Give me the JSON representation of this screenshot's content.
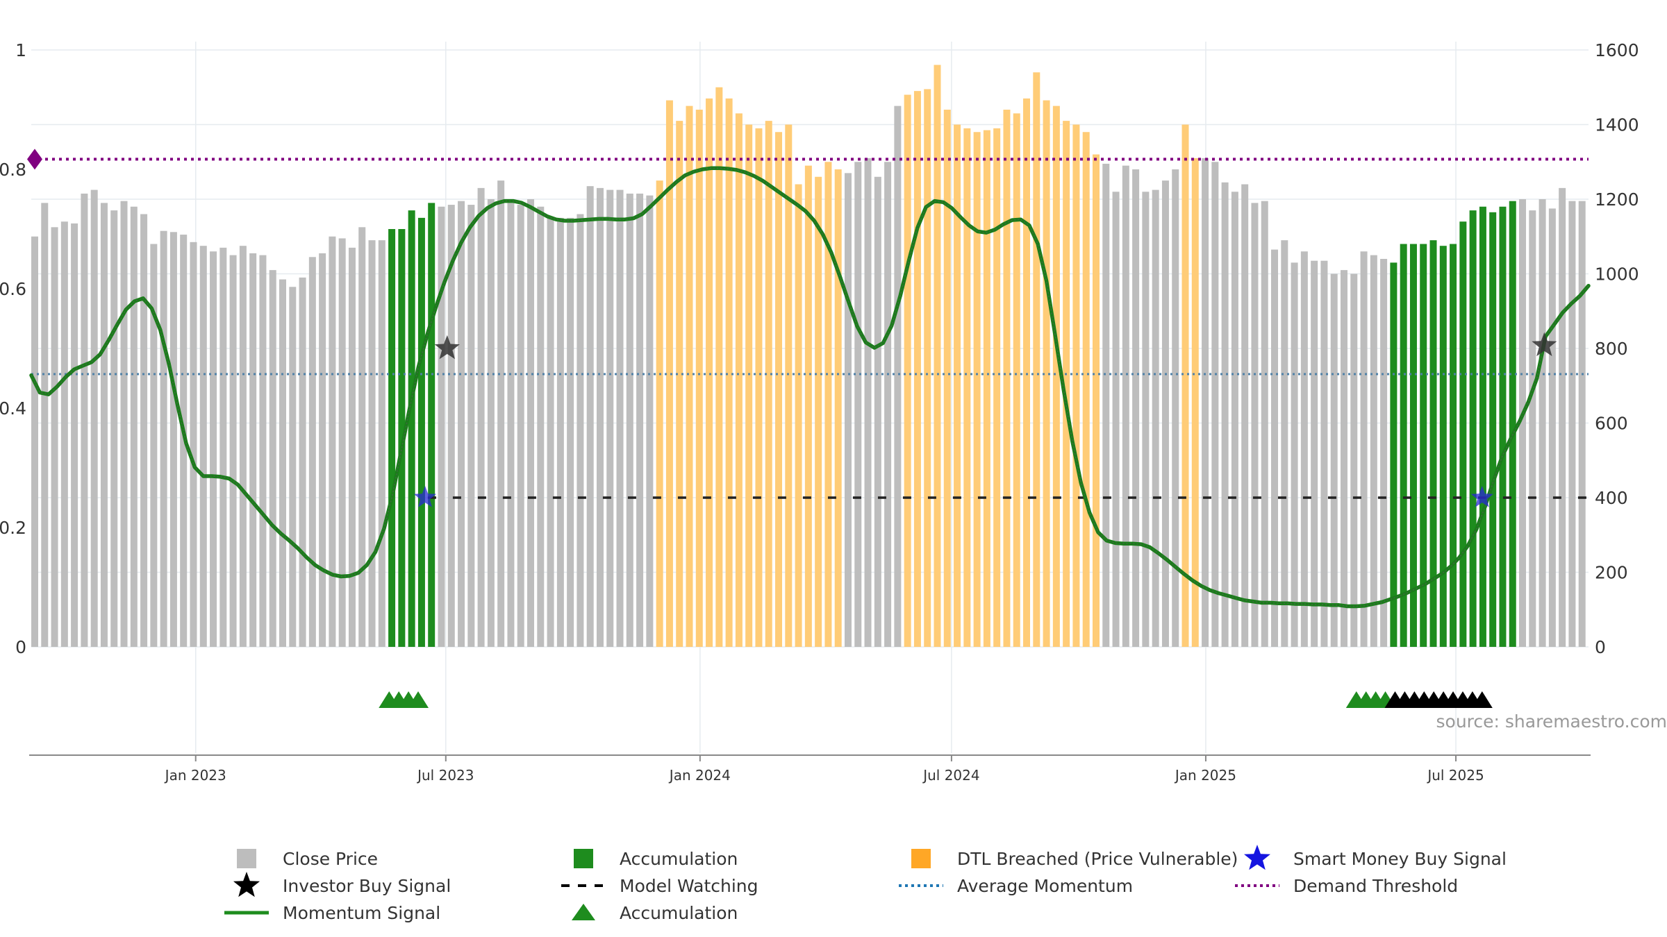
{
  "chart_data": {
    "type": "bar+line",
    "source_text": "source: sharemaestro.com",
    "colors": {
      "close": "#bdbdbd",
      "accumulation": "#1e8c1e",
      "dtl": "#ffcc77",
      "momentum": "#2a8c2a",
      "avg_momentum": "#4f81a8",
      "demand": "#800080",
      "watching": "#222222",
      "smart_money": "#2a2ad4",
      "investor": "#333333"
    },
    "left_axis": {
      "ticks": [
        0,
        0.2,
        0.4,
        0.6,
        0.8,
        1
      ],
      "labels": [
        "0",
        "0.2",
        "0.4",
        "0.6",
        "0.8",
        "1"
      ],
      "ylim": [
        0,
        1
      ]
    },
    "right_axis": {
      "ticks": [
        0,
        200,
        400,
        600,
        800,
        1000,
        1200,
        1400,
        1600
      ],
      "labels": [
        "0",
        "200",
        "400",
        "600",
        "800",
        "1000",
        "1200",
        "1400",
        "1600"
      ],
      "ylim": [
        0,
        1600
      ]
    },
    "x_axis": {
      "start_date": "2022-09-04",
      "end_date": "2025-10-05",
      "ticks": [
        {
          "date": "2023-01-01",
          "label": "Jan 2023"
        },
        {
          "date": "2023-07-01",
          "label": "Jul 2023"
        },
        {
          "date": "2024-01-01",
          "label": "Jan 2024"
        },
        {
          "date": "2024-07-01",
          "label": "Jul 2024"
        },
        {
          "date": "2025-01-01",
          "label": "Jan 2025"
        },
        {
          "date": "2025-07-01",
          "label": "Jul 2025"
        }
      ]
    },
    "close_price_weekly": [
      1100,
      1190,
      1125,
      1140,
      1135,
      1215,
      1225,
      1190,
      1170,
      1195,
      1180,
      1160,
      1080,
      1115,
      1112,
      1105,
      1085,
      1075,
      1060,
      1070,
      1050,
      1075,
      1055,
      1050,
      1010,
      985,
      965,
      990,
      1045,
      1055,
      1100,
      1095,
      1070,
      1125,
      1090,
      1090,
      1120,
      1120,
      1170,
      1150,
      1190,
      1180,
      1185,
      1195,
      1185,
      1230,
      1200,
      1250,
      1190,
      1185,
      1200,
      1180,
      1150,
      1150,
      1150,
      1160,
      1235,
      1230,
      1225,
      1225,
      1215,
      1215,
      1210,
      1250,
      1465,
      1410,
      1450,
      1440,
      1470,
      1500,
      1470,
      1430,
      1400,
      1390,
      1410,
      1380,
      1400,
      1240,
      1290,
      1260,
      1300,
      1280,
      1270,
      1300,
      1310,
      1260,
      1300,
      1450,
      1480,
      1490,
      1495,
      1560,
      1440,
      1400,
      1390,
      1380,
      1385,
      1390,
      1440,
      1430,
      1470,
      1540,
      1465,
      1450,
      1410,
      1400,
      1380,
      1320,
      1295,
      1220,
      1290,
      1280,
      1220,
      1225,
      1250,
      1280,
      1400,
      1310,
      1310,
      1300,
      1245,
      1220,
      1240,
      1190,
      1195,
      1065,
      1090,
      1030,
      1060,
      1035,
      1035,
      1000,
      1010,
      1000,
      1060,
      1050,
      1040,
      1030,
      1080,
      1080,
      1080,
      1090,
      1075,
      1080,
      1140,
      1170,
      1180,
      1165,
      1180,
      1195,
      1200,
      1170,
      1200,
      1175,
      1230,
      1195,
      1195
    ],
    "momentum": [
      0.455,
      0.426,
      0.423,
      0.436,
      0.452,
      0.465,
      0.471,
      0.477,
      0.49,
      0.514,
      0.54,
      0.565,
      0.579,
      0.584,
      0.567,
      0.531,
      0.474,
      0.405,
      0.341,
      0.301,
      0.286,
      0.286,
      0.285,
      0.282,
      0.272,
      0.255,
      0.238,
      0.221,
      0.204,
      0.19,
      0.178,
      0.165,
      0.15,
      0.137,
      0.128,
      0.121,
      0.118,
      0.119,
      0.124,
      0.137,
      0.159,
      0.198,
      0.255,
      0.328,
      0.401,
      0.469,
      0.522,
      0.568,
      0.61,
      0.647,
      0.678,
      0.703,
      0.722,
      0.735,
      0.743,
      0.747,
      0.747,
      0.744,
      0.737,
      0.729,
      0.721,
      0.716,
      0.714,
      0.714,
      0.715,
      0.716,
      0.717,
      0.717,
      0.716,
      0.716,
      0.718,
      0.725,
      0.738,
      0.752,
      0.766,
      0.779,
      0.79,
      0.796,
      0.8,
      0.802,
      0.802,
      0.801,
      0.799,
      0.795,
      0.789,
      0.781,
      0.771,
      0.761,
      0.751,
      0.741,
      0.73,
      0.714,
      0.691,
      0.66,
      0.62,
      0.578,
      0.537,
      0.51,
      0.501,
      0.509,
      0.538,
      0.588,
      0.647,
      0.702,
      0.737,
      0.747,
      0.745,
      0.735,
      0.72,
      0.706,
      0.696,
      0.694,
      0.699,
      0.708,
      0.715,
      0.716,
      0.706,
      0.675,
      0.613,
      0.523,
      0.43,
      0.345,
      0.275,
      0.225,
      0.192,
      0.178,
      0.174,
      0.173,
      0.173,
      0.172,
      0.167,
      0.157,
      0.146,
      0.134,
      0.122,
      0.111,
      0.102,
      0.095,
      0.09,
      0.086,
      0.082,
      0.078,
      0.076,
      0.074,
      0.074,
      0.073,
      0.073,
      0.072,
      0.072,
      0.071,
      0.071,
      0.07,
      0.07,
      0.068,
      0.068,
      0.069,
      0.072,
      0.075,
      0.08,
      0.085,
      0.091,
      0.098,
      0.105,
      0.114,
      0.123,
      0.135,
      0.15,
      0.17,
      0.198,
      0.236,
      0.28,
      0.32,
      0.35,
      0.378,
      0.41,
      0.45,
      0.52,
      0.54,
      0.56,
      0.575,
      0.588,
      0.605
    ],
    "average_momentum": 0.457,
    "demand_threshold": 0.817,
    "model_watching": {
      "value": 0.25,
      "from": "2023-06-18",
      "to": "2025-10-05"
    },
    "accumulation_ranges": [
      {
        "from": "2023-05-14",
        "to": "2023-06-11"
      },
      {
        "from": "2025-04-20",
        "to": "2025-07-13"
      }
    ],
    "dtl_ranges": [
      {
        "from": "2023-11-19",
        "to": "2024-03-24"
      },
      {
        "from": "2024-05-12",
        "to": "2024-09-22"
      },
      {
        "from": "2024-11-24",
        "to": "2024-12-01"
      }
    ],
    "smart_money_signals": [
      {
        "date": "2023-06-16",
        "value": 0.25
      },
      {
        "date": "2025-07-20",
        "value": 0.25
      }
    ],
    "investor_signals": [
      {
        "date": "2023-07-02",
        "value": 0.5
      },
      {
        "date": "2025-09-03",
        "value": 0.505
      }
    ],
    "accumulation_markers_green": [
      "2023-05-21",
      "2023-05-28",
      "2023-06-04",
      "2023-06-11",
      "2025-04-20",
      "2025-04-27",
      "2025-05-04",
      "2025-05-11"
    ],
    "accumulation_markers_black": [
      "2025-05-18",
      "2025-05-25",
      "2025-06-01",
      "2025-06-08",
      "2025-06-15",
      "2025-06-22",
      "2025-06-29",
      "2025-07-06",
      "2025-07-13",
      "2025-07-20"
    ],
    "demand_marker": {
      "date": "2022-09-04",
      "value": 0.817
    },
    "legend": [
      {
        "label": "Close Price",
        "symbol": "square",
        "color": "#bdbdbd"
      },
      {
        "label": "Accumulation",
        "symbol": "square",
        "color": "#1e8c1e"
      },
      {
        "label": "DTL Breached (Price Vulnerable)",
        "symbol": "square",
        "color": "#ffa726"
      },
      {
        "label": "Smart Money Buy Signal",
        "symbol": "star",
        "color": "#1515e0"
      },
      {
        "label": "Investor Buy Signal",
        "symbol": "star",
        "color": "#000000"
      },
      {
        "label": "Model Watching",
        "symbol": "dash",
        "color": "#000000"
      },
      {
        "label": "Average Momentum",
        "symbol": "dot",
        "color": "#1f77b4"
      },
      {
        "label": "Demand Threshold",
        "symbol": "dot",
        "color": "#800080"
      },
      {
        "label": "Momentum Signal",
        "symbol": "line",
        "color": "#1e8c1e"
      },
      {
        "label": "Model Watching",
        "symbol": "none",
        "color": "#000000",
        "hidden": true
      },
      {
        "label": "Accumulation",
        "symbol": "triangle",
        "color": "#1e8c1e"
      }
    ]
  }
}
